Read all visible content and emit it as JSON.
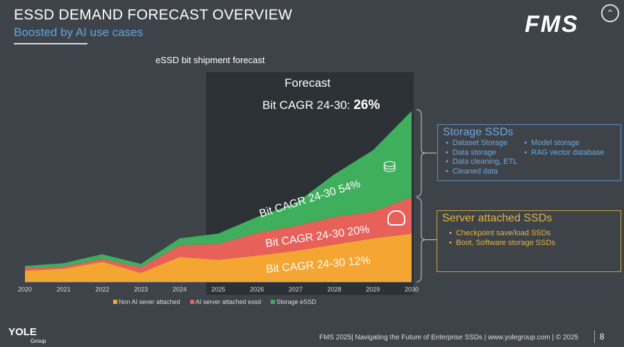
{
  "header": {
    "title": "ESSD DEMAND FORECAST OVERVIEW",
    "subtitle": "Boosted by AI use cases",
    "logo": "FMS",
    "up_icon": "chevron-up-icon"
  },
  "chart_data": {
    "type": "area",
    "stacked": true,
    "title": "eSSD bit shipment forecast",
    "x": [
      "2020",
      "2021",
      "2022",
      "2023",
      "2024",
      "2025",
      "2026",
      "2027",
      "2028",
      "2029",
      "2030"
    ],
    "series": [
      {
        "name": "Non AI sever attached",
        "color": "#f5a531",
        "values": [
          16,
          19,
          29,
          13,
          36,
          32,
          38,
          45,
          54,
          63,
          70
        ]
      },
      {
        "name": "AI server attached essd",
        "color": "#e8605a",
        "values": [
          4,
          3,
          4,
          8,
          17,
          23,
          33,
          36,
          40,
          39,
          53
        ]
      },
      {
        "name": "Storage eSSD",
        "color": "#3fae5d",
        "values": [
          3,
          5,
          7,
          5,
          10,
          15,
          23,
          33,
          62,
          89,
          125
        ]
      }
    ],
    "ylim": [
      0,
      250
    ],
    "units": "relative (no y axis shown)",
    "forecast_label": "Forecast",
    "forecast_cagr_label": "Bit CAGR 24-30:",
    "forecast_cagr_value": "26%",
    "annotations": [
      "Bit CAGR 24-30 54%",
      "Bit CAGR 24-30 20%",
      "Bit CAGR 24-30 12%"
    ]
  },
  "storage_box": {
    "title": "Storage SSDs",
    "col1": [
      "Dataset Storage",
      "Data storage",
      "Data cleaning, ETL",
      "Cleaned data"
    ],
    "col2": [
      "Model storage",
      "RAG vector database"
    ]
  },
  "server_box": {
    "title": "Server attached SSDs",
    "items": [
      "Checkpoint save/load SSDs",
      "Boot, Software storage SSDs"
    ]
  },
  "footer": {
    "text": "FMS 2025| Navigating the Future of Enterprise SSDs | www.yolegroup.com | © 2025",
    "page": "8",
    "brand": "YOLE",
    "brand_sub": "Group"
  }
}
